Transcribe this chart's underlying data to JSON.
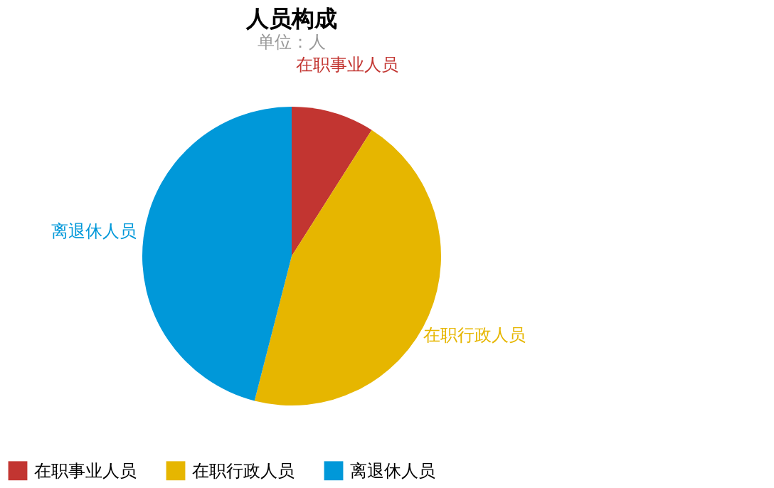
{
  "chart_data": {
    "type": "pie",
    "title": "人员构成",
    "subtitle": "单位：人",
    "categories": [
      "在职事业人员",
      "在职行政人员",
      "离退休人员"
    ],
    "values": [
      9,
      45,
      46
    ],
    "colors": [
      "#c23531",
      "#e6b600",
      "#0098d9"
    ],
    "legend": "bottom left"
  }
}
